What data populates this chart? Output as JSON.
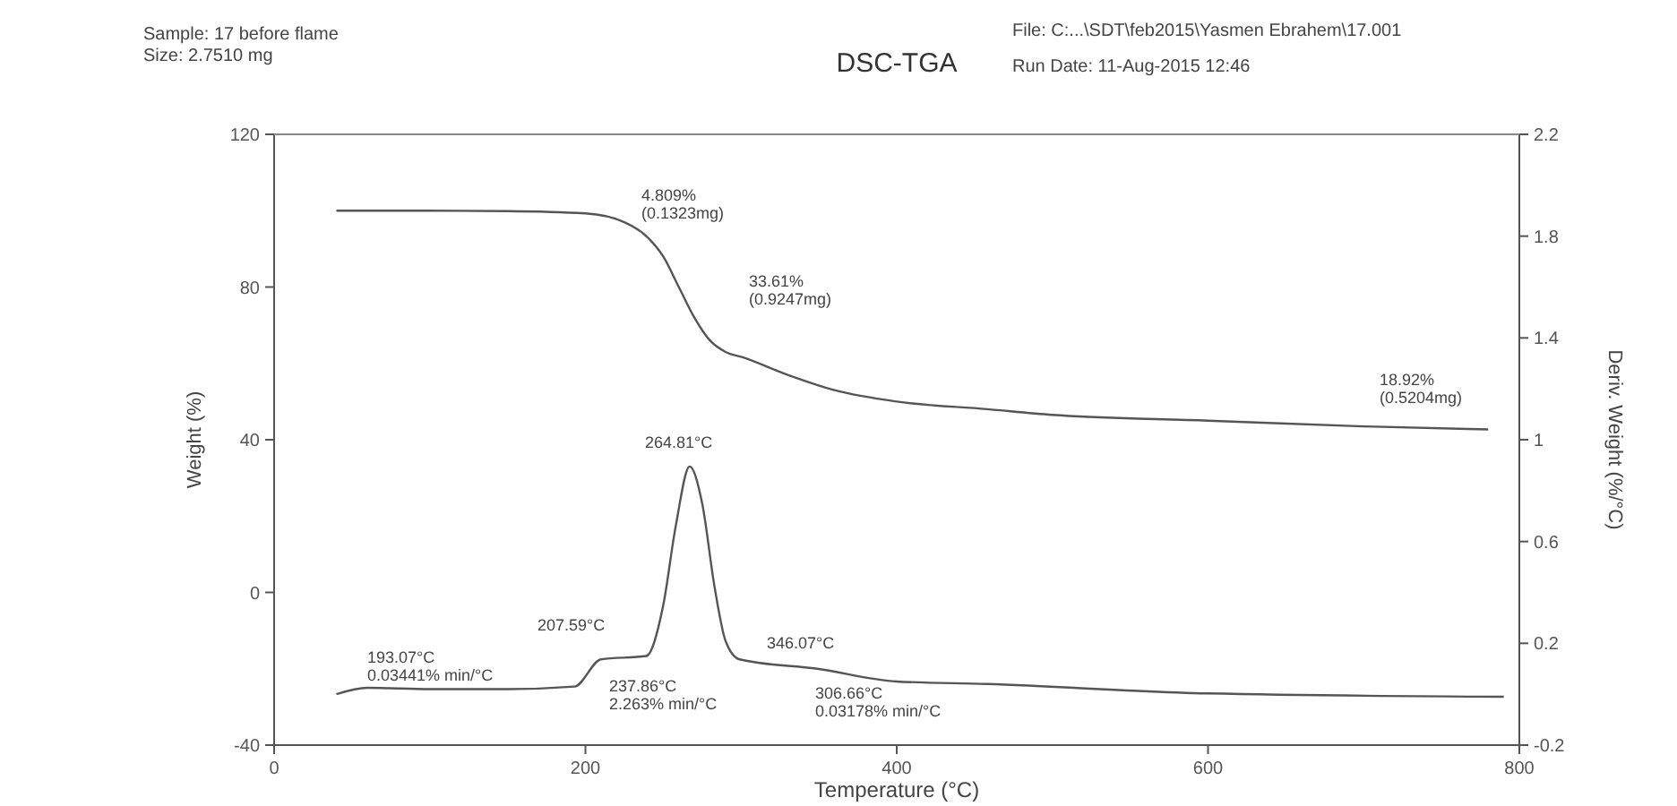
{
  "chart_data": {
    "type": "line",
    "title": "DSC-TGA",
    "xlabel": "Temperature (°C)",
    "ylabel": "Weight (%)",
    "y2label": "Deriv. Weight (%/°C)",
    "xlim": [
      0,
      800
    ],
    "xticks": [
      0,
      200,
      400,
      600,
      800
    ],
    "ylim": [
      -40,
      120
    ],
    "yticks": [
      -40,
      0,
      40,
      80,
      120
    ],
    "y2lim": [
      -0.2,
      2.2
    ],
    "y2ticks": [
      -0.2,
      0.2,
      0.6,
      1.0,
      1.4,
      1.8,
      2.2
    ],
    "grid": false,
    "marker": "none",
    "line_style": "solid",
    "series": [
      {
        "color": "#555555",
        "x": [
          40,
          100,
          150,
          200,
          225,
          240,
          250,
          260,
          270,
          280,
          290,
          301,
          330,
          360,
          400,
          458,
          500,
          600,
          700,
          780
        ],
        "values": [
          100,
          100,
          99.9,
          99.3,
          97,
          93,
          88,
          80,
          72,
          66,
          63,
          61.6,
          57,
          53,
          50,
          48,
          46.5,
          45,
          43.5,
          42.7
        ]
      },
      {
        "color": "#555555",
        "axis": "y2",
        "x": [
          40,
          60,
          100,
          150,
          193,
          210,
          239,
          250,
          258,
          267,
          275,
          283,
          290,
          299,
          349,
          400,
          458,
          600,
          790
        ],
        "values": [
          0.0,
          0.025,
          0.02,
          0.02,
          0.03,
          0.137,
          0.15,
          0.35,
          0.66,
          0.895,
          0.75,
          0.42,
          0.21,
          0.137,
          0.1,
          0.05,
          0.04,
          0.003,
          -0.01
        ]
      }
    ],
    "annotations": [
      "Sample: 17 before flame",
      "Size: 2.7510 mg",
      "File: C:...\\SDT\\feb2015\\Yasmen Ebrahem\\17.001",
      "Run Date: 11-Aug-2015 12:46",
      "4.809%\n(0.1323mg)",
      "33.61%\n(0.9247mg)",
      "18.92%\n(0.5204mg)",
      "264.81°C",
      "207.59°C",
      "193.07°C\n0.03441% min/°C",
      "237.86°C\n2.263% min/°C",
      "346.07°C",
      "306.66°C\n0.03178% min/°C"
    ]
  }
}
